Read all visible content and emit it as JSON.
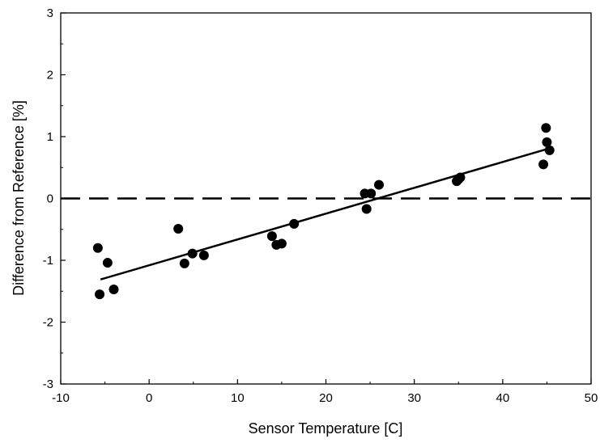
{
  "chart_data": {
    "type": "scatter",
    "title": "",
    "xlabel": "Sensor Temperature [C]",
    "ylabel": "Difference from Reference [%]",
    "xlim": [
      -10,
      50
    ],
    "ylim": [
      -3,
      3
    ],
    "x_ticks": [
      -10,
      0,
      10,
      20,
      30,
      40,
      50
    ],
    "y_ticks": [
      -3,
      -2,
      -1,
      0,
      1,
      2,
      3
    ],
    "x_tick_labels": [
      "-10",
      "0",
      "10",
      "20",
      "30",
      "40",
      "50"
    ],
    "y_tick_labels": [
      "-3",
      "-2",
      "-1",
      "0",
      "1",
      "2",
      "3"
    ],
    "grid": false,
    "series": [
      {
        "marker": "filled-circle",
        "color": "#000000",
        "points": [
          {
            "x": -5.8,
            "y": -0.8
          },
          {
            "x": -5.6,
            "y": -1.55
          },
          {
            "x": -4.7,
            "y": -1.04
          },
          {
            "x": -4.0,
            "y": -1.47
          },
          {
            "x": 3.3,
            "y": -0.49
          },
          {
            "x": 4.0,
            "y": -1.05
          },
          {
            "x": 4.9,
            "y": -0.89
          },
          {
            "x": 6.2,
            "y": -0.92
          },
          {
            "x": 13.9,
            "y": -0.61
          },
          {
            "x": 14.4,
            "y": -0.75
          },
          {
            "x": 15.0,
            "y": -0.73
          },
          {
            "x": 16.4,
            "y": -0.41
          },
          {
            "x": 24.4,
            "y": 0.08
          },
          {
            "x": 24.6,
            "y": -0.17
          },
          {
            "x": 25.1,
            "y": 0.08
          },
          {
            "x": 26.0,
            "y": 0.22
          },
          {
            "x": 34.8,
            "y": 0.28
          },
          {
            "x": 35.0,
            "y": 0.31
          },
          {
            "x": 35.2,
            "y": 0.34
          },
          {
            "x": 44.6,
            "y": 0.55
          },
          {
            "x": 44.9,
            "y": 1.14
          },
          {
            "x": 45.0,
            "y": 0.91
          },
          {
            "x": 45.3,
            "y": 0.78
          }
        ]
      }
    ],
    "fit_line": {
      "x": [
        -5.5,
        44.8
      ],
      "y": [
        -1.31,
        0.79
      ],
      "color": "#000000",
      "style": "solid"
    },
    "reference_line": {
      "y": 0,
      "color": "#000000",
      "style": "dashed"
    }
  }
}
